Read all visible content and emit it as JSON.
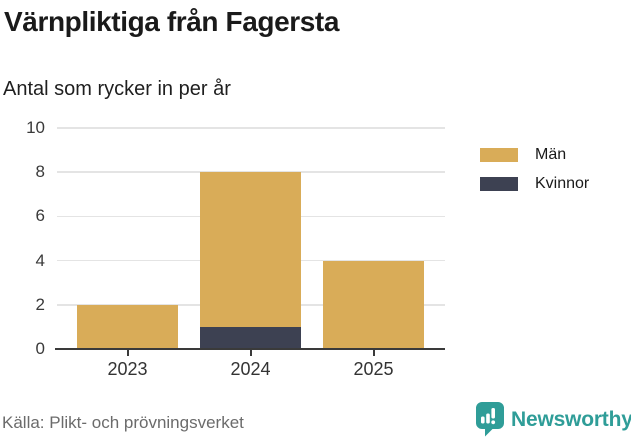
{
  "header": {
    "title": "Värnpliktiga från Fagersta",
    "subtitle": "Antal som rycker in per år"
  },
  "chart_data": {
    "type": "bar",
    "stacked": true,
    "title": "Värnpliktiga från Fagersta",
    "subtitle": "Antal som rycker in per år",
    "categories": [
      "2023",
      "2024",
      "2025"
    ],
    "series": [
      {
        "name": "Män",
        "color": "#d9ac58",
        "values": [
          2,
          7,
          4
        ]
      },
      {
        "name": "Kvinnor",
        "color": "#3d4152",
        "values": [
          0,
          1,
          0
        ]
      }
    ],
    "stack_order_bottom_to_top": [
      "Kvinnor",
      "Män"
    ],
    "totals": [
      2,
      8,
      4
    ],
    "xlabel": "",
    "ylabel": "",
    "ylim": [
      0,
      10
    ],
    "yticks": [
      0,
      2,
      4,
      6,
      8,
      10
    ],
    "grid": "horizontal",
    "legend_position": "right"
  },
  "legend": {
    "items": [
      {
        "label": "Män",
        "color": "#d9ac58"
      },
      {
        "label": "Kvinnor",
        "color": "#3d4152"
      }
    ]
  },
  "footer": {
    "source": "Källa: Plikt- och prövningsverket",
    "brand": "Newsworthy"
  },
  "colors": {
    "bar_men": "#d9ac58",
    "bar_women": "#3d4152",
    "axis": "#3a3a3a",
    "gridline": "#e4e4e4",
    "brand_teal": "#2f9d98",
    "source_text": "#6b6b6b"
  }
}
